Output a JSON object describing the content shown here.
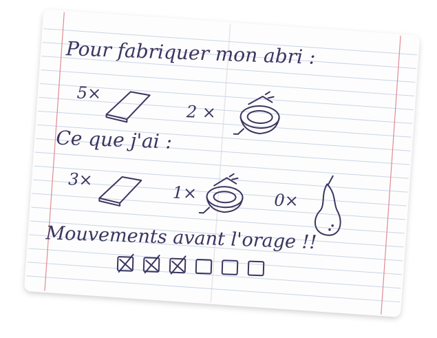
{
  "heading": "Pour fabriquer mon abri :",
  "required": {
    "planks": {
      "qty": "5×",
      "icon": "plank-icon"
    },
    "rope": {
      "qty": "2 ×",
      "icon": "rope-coil-icon"
    }
  },
  "have_label": "Ce que j'ai :",
  "have": {
    "planks": {
      "qty": "3×",
      "icon": "plank-icon"
    },
    "rope": {
      "qty": "1×",
      "icon": "rope-coil-icon"
    },
    "pear": {
      "qty": "0×",
      "icon": "pear-icon"
    }
  },
  "moves_label": "Mouvements avant l'orage !!",
  "moves": {
    "total": 6,
    "used": 3
  },
  "colors": {
    "ink": "#3b3560",
    "rule_line": "#c9d4e6",
    "margin_line": "#e08a92",
    "paper": "#fdfdfd"
  }
}
